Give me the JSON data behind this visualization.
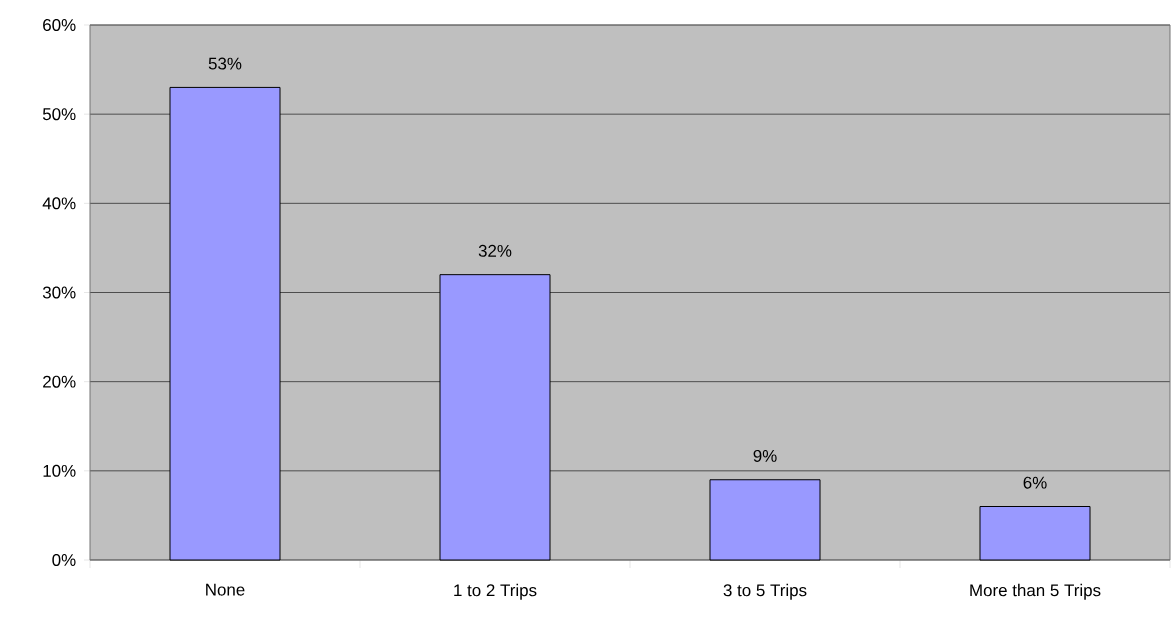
{
  "chart_data": {
    "type": "bar",
    "categories": [
      "None",
      "1 to 2 Trips",
      "3 to 5 Trips",
      "More than 5 Trips"
    ],
    "values": [
      53,
      32,
      9,
      6
    ],
    "value_labels": [
      "53%",
      "32%",
      "9%",
      "6%"
    ],
    "color": "#9999ff",
    "ylim": [
      0,
      60
    ],
    "yticks": [
      {
        "value": 0,
        "label": "0%"
      },
      {
        "value": 10,
        "label": "10%"
      },
      {
        "value": 20,
        "label": "20%"
      },
      {
        "value": 30,
        "label": "30%"
      },
      {
        "value": 40,
        "label": "40%"
      },
      {
        "value": 50,
        "label": "50%"
      },
      {
        "value": 60,
        "label": "60%"
      }
    ],
    "grid": "y"
  }
}
